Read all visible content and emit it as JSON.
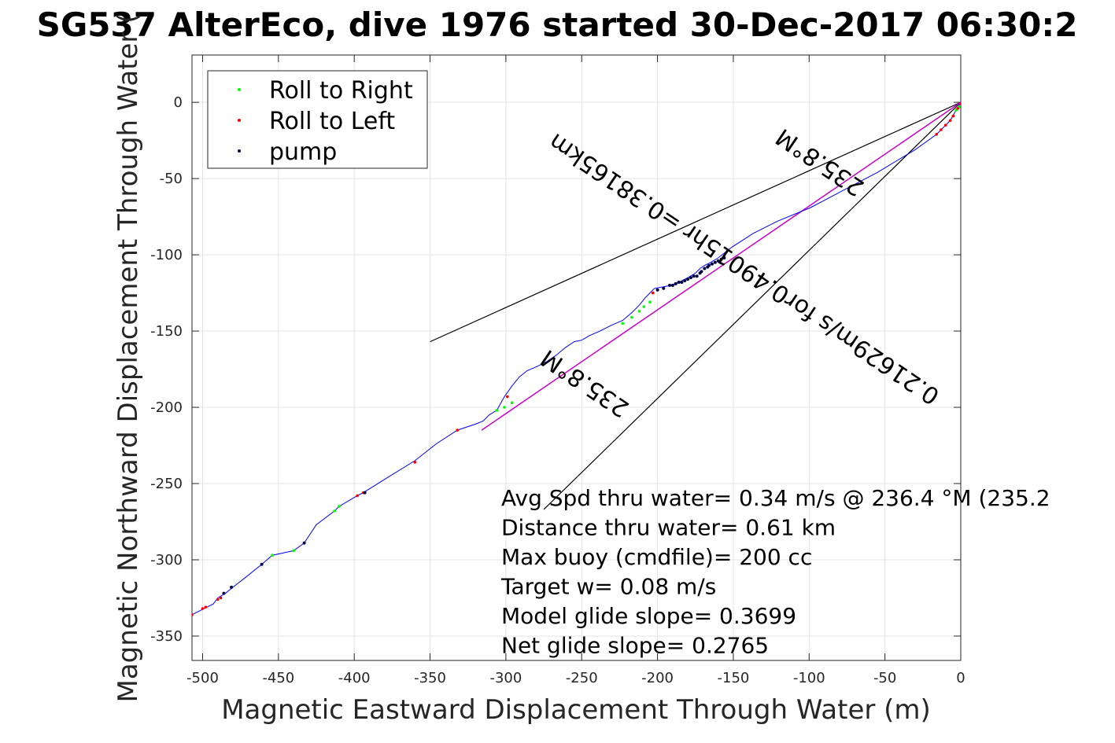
{
  "chart_data": {
    "type": "line",
    "title": "SG537 AlterEco, dive 1976 started 30-Dec-2017 06:30:2",
    "xlabel": "Magnetic Eastward Displacement Through Water (m)",
    "ylabel": "Magnetic Northward Displacement Through Water (",
    "xlim": [
      -507,
      0
    ],
    "ylim": [
      -366,
      31
    ],
    "xticks": [
      -500,
      -450,
      -400,
      -350,
      -300,
      -250,
      -200,
      -150,
      -100,
      -50,
      0
    ],
    "yticks": [
      0,
      -50,
      -100,
      -150,
      -200,
      -250,
      -300,
      -350
    ],
    "grid": true,
    "legend_position": "top-left",
    "legend": [
      {
        "label": "Roll to Right",
        "color": "#00ff00"
      },
      {
        "label": "Roll to Left",
        "color": "#ff0000"
      },
      {
        "label": "pump",
        "color": "#000040"
      }
    ],
    "track": {
      "color": "#0000ff",
      "x": [
        -507,
        -499,
        -493,
        -490,
        -485,
        -480,
        -471,
        -461,
        -454,
        -440,
        -433,
        -425,
        -413,
        -410,
        -398,
        -394,
        -378,
        -360,
        -346,
        -332,
        -320,
        -315,
        -311,
        -306,
        -301,
        -296,
        -291,
        -286,
        -279,
        -273,
        -267,
        -261,
        -255,
        -250,
        -245,
        -238,
        -230,
        -223,
        -217,
        -212,
        -208,
        -205,
        -202,
        -196,
        -191,
        -186,
        -180,
        -175,
        -172,
        -169,
        -165,
        -160,
        -151,
        -137,
        -121,
        -99,
        -78,
        -55,
        -30,
        -16,
        -7,
        -3,
        0
      ],
      "y": [
        -336,
        -332,
        -329,
        -325,
        -322,
        -318,
        -311,
        -303,
        -297,
        -294,
        -289,
        -277,
        -268,
        -265,
        -258,
        -256,
        -246,
        -235,
        -224,
        -215,
        -211,
        -209,
        -205,
        -202,
        -193,
        -186,
        -180,
        -176,
        -173,
        -170,
        -166,
        -161,
        -157,
        -156,
        -153,
        -150,
        -146,
        -143,
        -138,
        -133,
        -128,
        -125,
        -122,
        -121,
        -120,
        -118,
        -115,
        -112,
        -109,
        -107,
        -105,
        -102,
        -95,
        -86,
        -78,
        -69,
        -58,
        -46,
        -31,
        -21,
        -12,
        -5,
        0
      ]
    },
    "pump_points": {
      "x": [
        -486,
        -481,
        -461,
        -433,
        -393,
        -174,
        -172,
        -171,
        -169,
        -167,
        -166,
        -164,
        -162,
        -160,
        -158,
        -156,
        -186,
        -184,
        -182,
        -180,
        -178,
        -176,
        -200,
        -196,
        -192,
        -190,
        -188
      ],
      "y": [
        -322,
        -318,
        -303,
        -289,
        -256,
        -114,
        -112,
        -111,
        -109,
        -108,
        -107,
        -106,
        -105,
        -104,
        -103,
        -102,
        -118,
        -118,
        -117,
        -116,
        -115,
        -114,
        -123,
        -122,
        -120,
        -120,
        -119
      ]
    },
    "roll_right_points": {
      "x": [
        -454,
        -440,
        -413,
        -410,
        -306,
        -301,
        -296,
        -223,
        -217,
        -212,
        -209,
        -266,
        -205,
        -3,
        -1
      ],
      "y": [
        -297,
        -294,
        -268,
        -265,
        -202,
        -200,
        -197,
        -145,
        -141,
        -137,
        -134,
        -172,
        -131,
        -5,
        -3
      ]
    },
    "roll_left_points": {
      "x": [
        -507,
        -500,
        -498,
        -490,
        -488,
        -398,
        -394,
        -360,
        -332,
        -299,
        -203,
        -16,
        -13,
        -10,
        -7,
        -5,
        -2,
        0
      ],
      "y": [
        -336,
        -332,
        -331,
        -326,
        -325,
        -258,
        -256,
        -236,
        -215,
        -193,
        -125,
        -21,
        -18,
        -15,
        -12,
        -9,
        -4,
        -1
      ]
    },
    "magenta_line": {
      "color": "#cc00cc",
      "x1": -316,
      "y1": -215,
      "x2": 0,
      "y2": 0
    },
    "cone_lines": [
      {
        "x1": -350,
        "y1": -157,
        "x2": 0,
        "y2": 0
      },
      {
        "x1": -275,
        "y1": -267,
        "x2": 0,
        "y2": 0
      }
    ],
    "rotated_labels": [
      {
        "text": "235.8°M",
        "x": -245,
        "y": -180,
        "angle_deg": 214
      },
      {
        "text": "235.8°M",
        "x": -90,
        "y": -35,
        "angle_deg": 214
      },
      {
        "text": "0.21629m/s for0.49015hr =0.38165km",
        "x": -140,
        "y": -105,
        "angle_deg": 214
      }
    ],
    "annotations": [
      "Avg Spd thru water=  0.34 m/s @ 236.4 °M (235.2",
      "Distance thru water=  0.61 km",
      "Max buoy (cmdfile)= 200 cc",
      "Target w= 0.08 m/s",
      "Model glide slope= 0.3699",
      "Net glide slope= 0.2765"
    ]
  }
}
